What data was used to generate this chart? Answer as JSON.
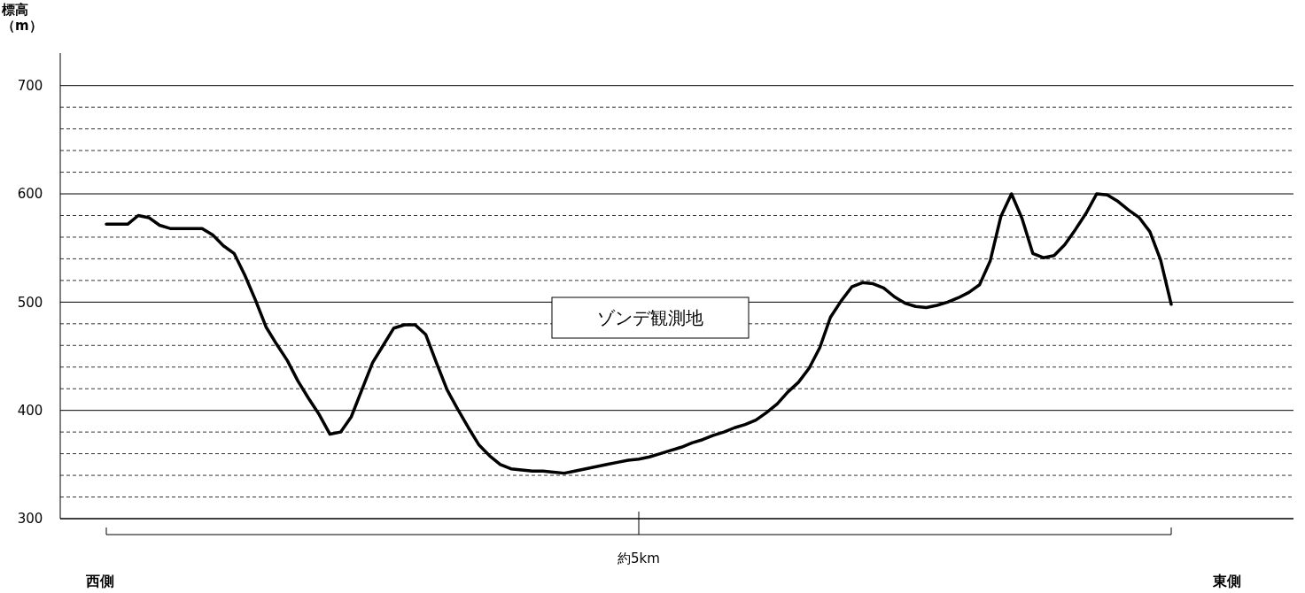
{
  "chart_data": {
    "type": "line",
    "ylabel": "標高（m）",
    "xlabel": "約5km",
    "annotations": [
      "ゾンデ観測地",
      "西側",
      "東側"
    ],
    "categories": [
      null,
      null,
      null,
      null,
      null,
      null,
      null,
      null,
      null,
      null,
      null,
      null,
      null,
      null,
      null,
      null,
      null,
      null,
      null,
      null,
      null,
      null,
      null,
      null,
      null,
      null,
      null,
      null,
      null,
      null,
      null,
      null,
      null,
      null,
      null,
      null,
      null,
      null,
      null,
      null,
      null,
      null,
      null,
      null,
      null,
      null,
      null,
      null,
      null,
      null,
      null,
      null,
      null,
      null,
      null,
      null,
      null,
      null,
      null,
      null,
      null,
      null,
      null,
      null,
      null,
      null,
      null,
      null,
      null,
      null,
      null,
      null,
      null,
      null,
      null,
      null,
      null,
      null,
      null,
      null,
      null,
      null,
      null,
      null,
      null,
      null,
      null,
      null,
      null,
      null,
      null,
      null,
      null,
      null,
      null,
      null,
      null,
      null,
      null,
      null,
      null
    ],
    "series": [
      {
        "color": "#000000",
        "values": [
          572,
          572,
          572,
          580,
          578,
          571,
          568,
          568,
          568,
          568,
          562,
          552,
          545,
          525,
          502,
          477,
          461,
          446,
          427,
          411,
          396,
          378,
          380,
          394,
          419,
          444,
          460,
          476,
          479,
          479,
          470,
          444,
          419,
          401,
          384,
          368,
          358,
          350,
          346,
          345,
          344,
          344,
          343,
          342,
          344,
          346,
          348,
          350,
          352,
          354,
          355,
          357,
          360,
          363,
          366,
          370,
          373,
          377,
          380,
          384,
          387,
          391,
          398,
          406,
          417,
          426,
          439,
          458,
          486,
          501,
          514,
          518,
          517,
          513,
          505,
          499,
          496,
          495,
          497,
          500,
          504,
          509,
          516,
          538,
          579,
          600,
          577,
          545,
          541,
          543,
          553,
          567,
          582,
          600,
          599,
          593,
          585,
          578,
          565,
          539,
          498
        ]
      }
    ],
    "ylim": [
      300,
      730
    ],
    "yticks": [
      300,
      {
        "value": 320,
        "label": null
      },
      {
        "value": 340,
        "label": null
      },
      {
        "value": 360,
        "label": null
      },
      {
        "value": 380,
        "label": null
      },
      400,
      {
        "value": 420,
        "label": null
      },
      {
        "value": 440,
        "label": null
      },
      {
        "value": 460,
        "label": null
      },
      {
        "value": 480,
        "label": null
      },
      500,
      {
        "value": 520,
        "label": null
      },
      {
        "value": 540,
        "label": null
      },
      {
        "value": 560,
        "label": null
      },
      {
        "value": 580,
        "label": null
      },
      600,
      {
        "value": 620,
        "label": null
      },
      {
        "value": 640,
        "label": null
      },
      {
        "value": 660,
        "label": null
      },
      {
        "value": 680,
        "label": null
      },
      700
    ],
    "grid": true,
    "tick_labels": "y",
    "marker": "none",
    "line_style": "solid"
  }
}
